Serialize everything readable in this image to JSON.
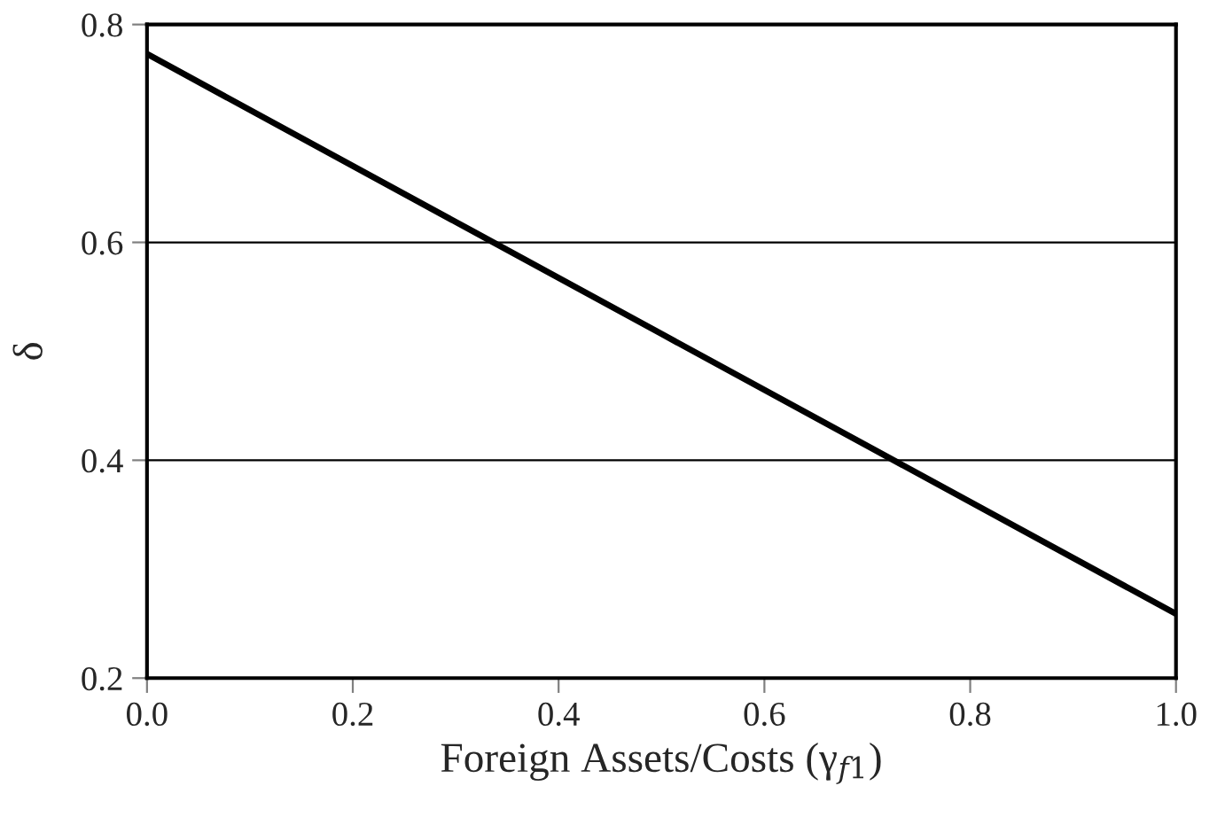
{
  "chart_data": {
    "type": "line",
    "xlabel": "Foreign Assets/Costs (γ$_{f1}$)",
    "ylabel": "δ",
    "x": [
      0.0,
      0.5,
      1.0
    ],
    "series": [
      {
        "color": "#000000",
        "values": [
          0.773,
          0.516,
          0.259
        ]
      }
    ],
    "xlim": [
      0.0,
      1.0
    ],
    "ylim": [
      0.2,
      0.8
    ],
    "xticks": [
      {
        "value": 0.0,
        "label": "0.0"
      },
      0.2,
      0.4,
      0.6,
      0.8,
      {
        "value": 1.0,
        "label": "1.0"
      }
    ],
    "yticks": [
      0.2,
      0.4,
      0.6,
      0.8
    ],
    "grid": "y",
    "marker": "none",
    "line_style": "solid"
  }
}
